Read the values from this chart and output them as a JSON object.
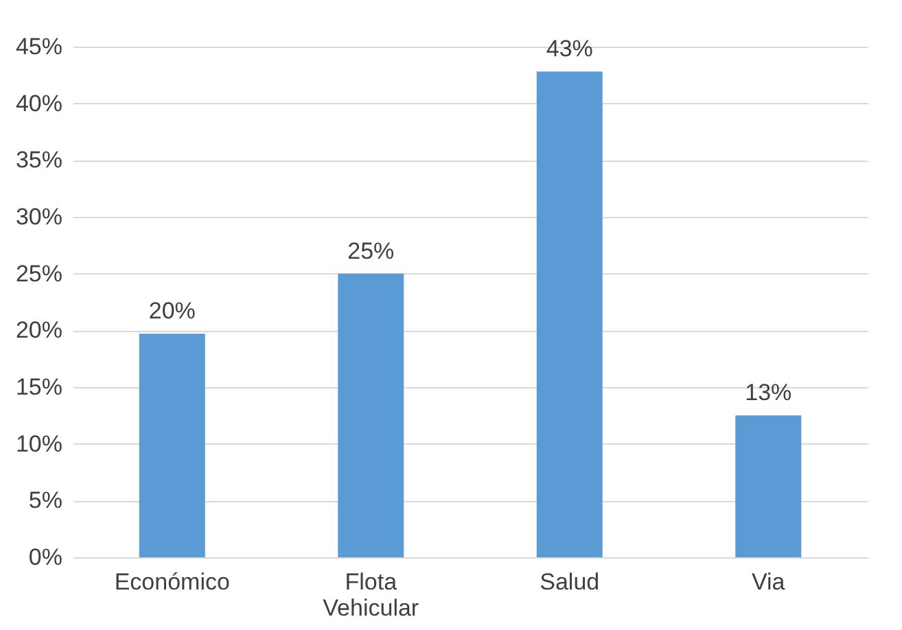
{
  "chart_data": {
    "type": "bar",
    "categories": [
      "Económico",
      "Flota Vehicular",
      "Salud",
      "Via"
    ],
    "values": [
      19.7,
      25,
      42.8,
      12.5
    ],
    "value_labels": [
      "20%",
      "25%",
      "43%",
      "13%"
    ],
    "color": "#5b9bd5",
    "ylim": [
      0,
      45
    ],
    "yticks": [
      {
        "value": 0,
        "label": "0%"
      },
      {
        "value": 5,
        "label": "5%"
      },
      {
        "value": 10,
        "label": "10%"
      },
      {
        "value": 15,
        "label": "15%"
      },
      {
        "value": 20,
        "label": "20%"
      },
      {
        "value": 25,
        "label": "25%"
      },
      {
        "value": 30,
        "label": "30%"
      },
      {
        "value": 35,
        "label": "35%"
      },
      {
        "value": 40,
        "label": "40%"
      },
      {
        "value": 45,
        "label": "45%"
      }
    ],
    "grid": "y"
  }
}
